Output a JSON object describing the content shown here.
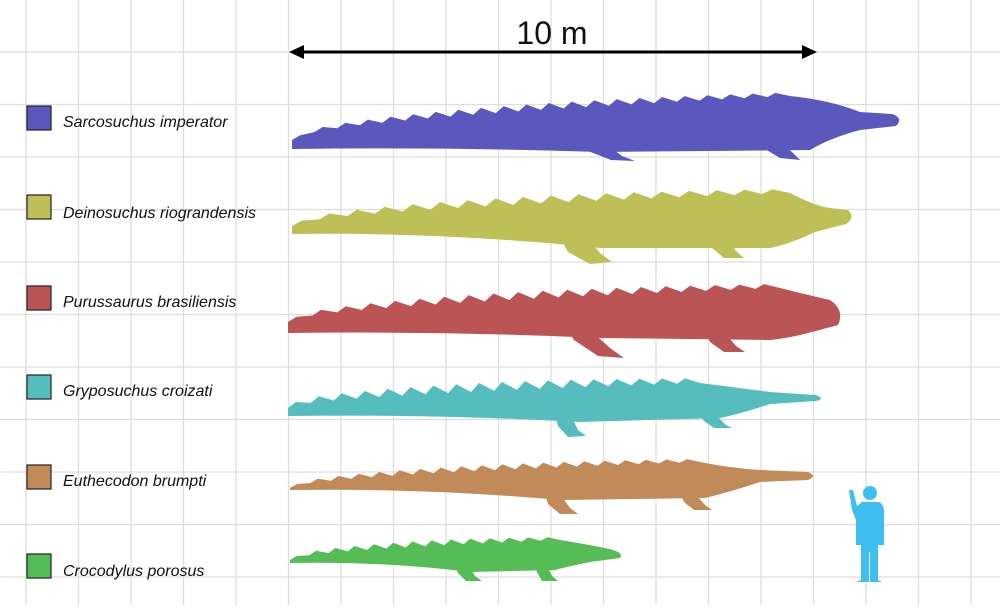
{
  "scale_bar": {
    "label": "10 m"
  },
  "legend": [
    {
      "label": "Sarcosuchus imperator",
      "color": "#5a57bd"
    },
    {
      "label": "Deinosuchus riograndensis",
      "color": "#bfbf58"
    },
    {
      "label": "Purussaurus brasiliensis",
      "color": "#bb5455"
    },
    {
      "label": "Gryposuchus croizati",
      "color": "#56bdbf"
    },
    {
      "label": "Euthecodon brumpti",
      "color": "#c08b58"
    },
    {
      "label": "Crocodylus porosus",
      "color": "#56bd56"
    }
  ],
  "human": {
    "icon": "human-silhouette-icon",
    "color": "#3fbff0"
  },
  "grid_color": "#dddddd"
}
